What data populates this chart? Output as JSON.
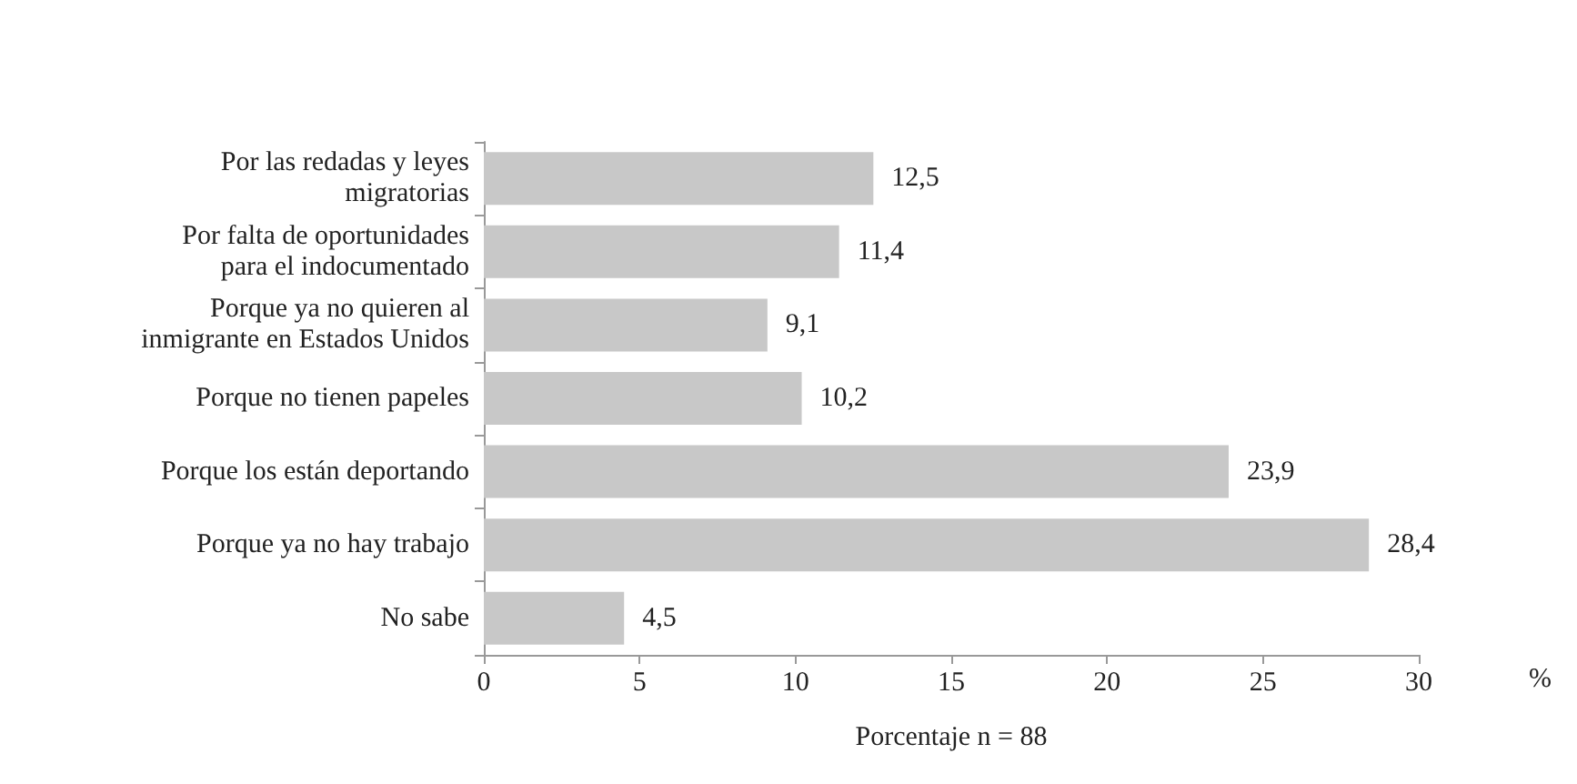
{
  "chart_data": {
    "type": "bar",
    "orientation": "horizontal",
    "categories": [
      "Por las redadas y leyes\nmigratorias",
      "Por falta de oportunidades\npara el indocumentado",
      "Porque ya no quieren al\ninmigrante en Estados Unidos",
      "Porque no tienen papeles",
      "Porque los están deportando",
      "Porque ya no hay trabajo",
      "No sabe"
    ],
    "values": [
      12.5,
      11.4,
      9.1,
      10.2,
      23.9,
      28.4,
      4.5
    ],
    "value_labels": [
      "12,5",
      "11,4",
      "9,1",
      "10,2",
      "23,9",
      "28,4",
      "4,5"
    ],
    "color": "#c8c8c8",
    "xlim": [
      0,
      30
    ],
    "xticks": [
      0,
      5,
      10,
      15,
      20,
      25,
      30
    ],
    "xlabel": "Porcentaje n = 88",
    "annotations": [
      "%"
    ],
    "grid": false
  }
}
